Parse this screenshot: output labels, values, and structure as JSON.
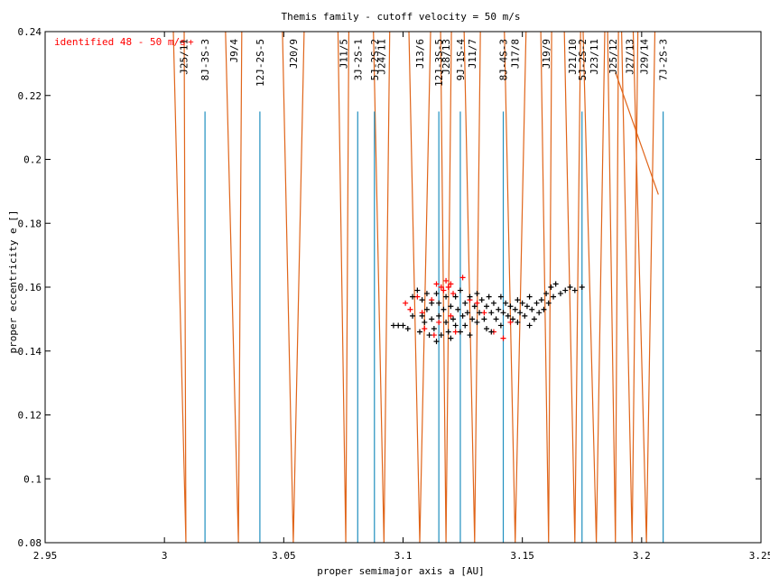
{
  "chart_data": {
    "type": "scatter",
    "title": "Themis family - cutoff velocity = 50 m/s",
    "xlabel": "proper semimajor axis a [AU]",
    "ylabel": "proper eccentricity e []",
    "xlim": [
      2.95,
      3.25
    ],
    "ylim": [
      0.08,
      0.24
    ],
    "grid": false,
    "legend_position": "top-left",
    "x_ticks": [
      "2.95",
      "3",
      "3.05",
      "3.1",
      "3.15",
      "3.2",
      "3.25"
    ],
    "y_ticks": [
      "0.08",
      "0.1",
      "0.12",
      "0.14",
      "0.16",
      "0.18",
      "0.2",
      "0.22",
      "0.24"
    ],
    "colors": {
      "members": "#000000",
      "identified": "#ff0000",
      "three_body": "#1f8fbf",
      "jupiter": "#e0651a"
    },
    "series": [
      {
        "name": "identified 48 - 50 m/s",
        "color": "#ff0000",
        "points": [
          [
            3.101,
            0.155
          ],
          [
            3.103,
            0.153
          ],
          [
            3.106,
            0.157
          ],
          [
            3.108,
            0.152
          ],
          [
            3.112,
            0.156
          ],
          [
            3.114,
            0.161
          ],
          [
            3.116,
            0.16
          ],
          [
            3.117,
            0.159
          ],
          [
            3.118,
            0.162
          ],
          [
            3.119,
            0.16
          ],
          [
            3.12,
            0.161
          ],
          [
            3.121,
            0.158
          ],
          [
            3.115,
            0.149
          ],
          [
            3.113,
            0.145
          ],
          [
            3.122,
            0.146
          ],
          [
            3.125,
            0.163
          ],
          [
            3.128,
            0.156
          ],
          [
            3.131,
            0.155
          ],
          [
            3.134,
            0.152
          ],
          [
            3.138,
            0.146
          ],
          [
            3.142,
            0.144
          ],
          [
            3.145,
            0.149
          ],
          [
            3.109,
            0.147
          ],
          [
            3.12,
            0.151
          ]
        ]
      },
      {
        "name": "",
        "color": "#000000",
        "points": [
          [
            3.096,
            0.148
          ],
          [
            3.098,
            0.148
          ],
          [
            3.1,
            0.148
          ],
          [
            3.102,
            0.147
          ],
          [
            3.104,
            0.151
          ],
          [
            3.104,
            0.157
          ],
          [
            3.106,
            0.159
          ],
          [
            3.107,
            0.146
          ],
          [
            3.108,
            0.151
          ],
          [
            3.108,
            0.156
          ],
          [
            3.109,
            0.149
          ],
          [
            3.11,
            0.153
          ],
          [
            3.11,
            0.158
          ],
          [
            3.111,
            0.145
          ],
          [
            3.112,
            0.15
          ],
          [
            3.112,
            0.155
          ],
          [
            3.113,
            0.147
          ],
          [
            3.114,
            0.158
          ],
          [
            3.114,
            0.143
          ],
          [
            3.115,
            0.151
          ],
          [
            3.115,
            0.155
          ],
          [
            3.116,
            0.145
          ],
          [
            3.117,
            0.153
          ],
          [
            3.118,
            0.149
          ],
          [
            3.118,
            0.157
          ],
          [
            3.119,
            0.146
          ],
          [
            3.12,
            0.154
          ],
          [
            3.12,
            0.144
          ],
          [
            3.121,
            0.15
          ],
          [
            3.122,
            0.157
          ],
          [
            3.122,
            0.148
          ],
          [
            3.123,
            0.153
          ],
          [
            3.124,
            0.146
          ],
          [
            3.124,
            0.159
          ],
          [
            3.125,
            0.151
          ],
          [
            3.126,
            0.155
          ],
          [
            3.126,
            0.148
          ],
          [
            3.127,
            0.152
          ],
          [
            3.128,
            0.157
          ],
          [
            3.128,
            0.145
          ],
          [
            3.129,
            0.15
          ],
          [
            3.13,
            0.154
          ],
          [
            3.131,
            0.149
          ],
          [
            3.131,
            0.158
          ],
          [
            3.132,
            0.152
          ],
          [
            3.133,
            0.156
          ],
          [
            3.134,
            0.15
          ],
          [
            3.135,
            0.154
          ],
          [
            3.135,
            0.147
          ],
          [
            3.136,
            0.157
          ],
          [
            3.137,
            0.152
          ],
          [
            3.138,
            0.155
          ],
          [
            3.139,
            0.15
          ],
          [
            3.14,
            0.153
          ],
          [
            3.141,
            0.157
          ],
          [
            3.141,
            0.148
          ],
          [
            3.142,
            0.152
          ],
          [
            3.143,
            0.155
          ],
          [
            3.144,
            0.151
          ],
          [
            3.145,
            0.154
          ],
          [
            3.146,
            0.15
          ],
          [
            3.147,
            0.153
          ],
          [
            3.148,
            0.156
          ],
          [
            3.149,
            0.152
          ],
          [
            3.15,
            0.155
          ],
          [
            3.151,
            0.151
          ],
          [
            3.152,
            0.154
          ],
          [
            3.153,
            0.157
          ],
          [
            3.154,
            0.153
          ],
          [
            3.155,
            0.15
          ],
          [
            3.156,
            0.155
          ],
          [
            3.157,
            0.152
          ],
          [
            3.158,
            0.156
          ],
          [
            3.159,
            0.153
          ],
          [
            3.16,
            0.158
          ],
          [
            3.161,
            0.155
          ],
          [
            3.162,
            0.16
          ],
          [
            3.163,
            0.157
          ],
          [
            3.164,
            0.161
          ],
          [
            3.166,
            0.158
          ],
          [
            3.168,
            0.159
          ],
          [
            3.17,
            0.16
          ],
          [
            3.172,
            0.159
          ],
          [
            3.175,
            0.16
          ],
          [
            3.153,
            0.148
          ],
          [
            3.148,
            0.149
          ],
          [
            3.137,
            0.146
          ]
        ]
      }
    ],
    "resonance_labels": [
      {
        "label": "J25/11",
        "a": 3.008
      },
      {
        "label": "8J-3S-3",
        "a": 3.017
      },
      {
        "label": "J9/4",
        "a": 3.029
      },
      {
        "label": "12J-2S-5",
        "a": 3.04
      },
      {
        "label": "J20/9",
        "a": 3.054
      },
      {
        "label": "J11/5",
        "a": 3.075
      },
      {
        "label": "3J-2S-1",
        "a": 3.081
      },
      {
        "label": "5J-2S-2",
        "a": 3.088
      },
      {
        "label": "J24/11",
        "a": 3.091
      },
      {
        "label": "J13/6",
        "a": 3.107
      },
      {
        "label": "12J-3S-5",
        "a": 3.115
      },
      {
        "label": "J28/13",
        "a": 3.118
      },
      {
        "label": "9J-1S-4",
        "a": 3.124
      },
      {
        "label": "J11/7",
        "a": 3.129
      },
      {
        "label": "8J-4S-3",
        "a": 3.142
      },
      {
        "label": "J17/8",
        "a": 3.147
      },
      {
        "label": "J19/9",
        "a": 3.16
      },
      {
        "label": "J21/10",
        "a": 3.171
      },
      {
        "label": "5J-2S-2",
        "a": 3.175
      },
      {
        "label": "J23/11",
        "a": 3.18
      },
      {
        "label": "J25/12",
        "a": 3.188
      },
      {
        "label": "J27/13",
        "a": 3.195
      },
      {
        "label": "J29/14",
        "a": 3.201
      },
      {
        "label": "7J-2S-3",
        "a": 3.209
      }
    ],
    "three_body_lines": [
      3.017,
      3.04,
      3.081,
      3.088,
      3.115,
      3.124,
      3.142,
      3.175,
      3.209
    ],
    "jupiter_lines": [
      {
        "x_top": 3.006,
        "x_bottom": 3.009,
        "e_apex": 0.08
      },
      {
        "x_top": 3.029,
        "x_bottom": 3.031,
        "e_apex": 0.08
      },
      {
        "x_top": 3.054,
        "x_bottom": 3.054,
        "e_apex": 0.08
      },
      {
        "x_top": 3.075,
        "x_bottom": 3.076,
        "e_apex": 0.08
      },
      {
        "x_top": 3.091,
        "x_bottom": 3.092,
        "e_apex": 0.08
      },
      {
        "x_top": 3.107,
        "x_bottom": 3.107,
        "e_apex": 0.08
      },
      {
        "x_top": 3.118,
        "x_bottom": 3.118,
        "e_apex": 0.08
      },
      {
        "x_top": 3.129,
        "x_bottom": 3.13,
        "e_apex": 0.08
      },
      {
        "x_top": 3.147,
        "x_bottom": 3.147,
        "e_apex": 0.08
      },
      {
        "x_top": 3.16,
        "x_bottom": 3.161,
        "e_apex": 0.08
      },
      {
        "x_top": 3.171,
        "x_bottom": 3.172,
        "e_apex": 0.08
      },
      {
        "x_top": 3.18,
        "x_bottom": 3.181,
        "e_apex": 0.08
      },
      {
        "x_top": 3.188,
        "x_bottom": 3.189,
        "e_apex": 0.08
      },
      {
        "x_top": 3.195,
        "x_bottom": 3.196,
        "e_apex": 0.08
      },
      {
        "x_top": 3.201,
        "x_bottom": 3.202,
        "e_apex": 0.08
      }
    ]
  }
}
